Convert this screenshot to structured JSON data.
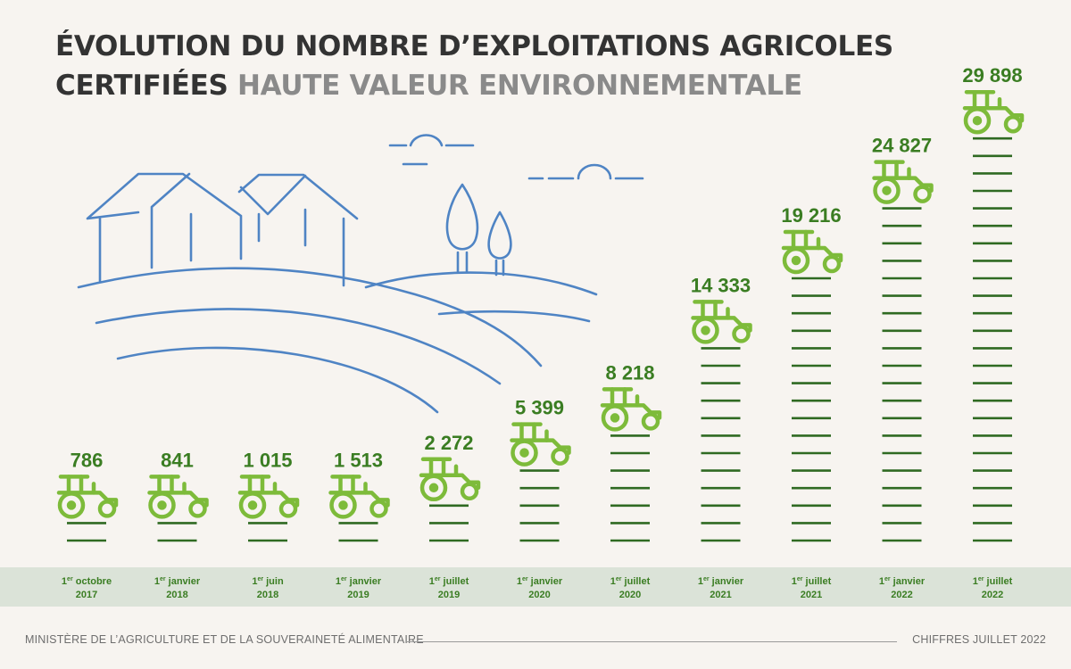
{
  "title": {
    "line1": "ÉVOLUTION DU NOMBRE D’EXPLOITATIONS AGRICOLES",
    "line2_dark": "CERTIFIÉES",
    "line2_accent": "HAUTE VALEUR ENVIRONNEMENTALE"
  },
  "footer": {
    "source": "MINISTÈRE DE L’AGRICULTURE ET DE LA SOUVERAINETÉ ALIMENTAIRE",
    "date": "CHIFFRES JUILLET 2022"
  },
  "colors": {
    "value_text": "#3a7d22",
    "tractor": "#7dbb3a",
    "bar_line": "#2f6a22",
    "axis_band": "#dbe3d8",
    "axis_text": "#3a7d22",
    "landscape": "#4f84c4"
  },
  "icons": [
    "tractor-icon"
  ],
  "chart_data": {
    "type": "bar",
    "x": [
      {
        "sup": "er",
        "day": "1",
        "month": "octobre",
        "year": "2017"
      },
      {
        "sup": "er",
        "day": "1",
        "month": "janvier",
        "year": "2018"
      },
      {
        "sup": "er",
        "day": "1",
        "month": "juin",
        "year": "2018"
      },
      {
        "sup": "er",
        "day": "1",
        "month": "janvier",
        "year": "2019"
      },
      {
        "sup": "er",
        "day": "1",
        "month": "juillet",
        "year": "2019"
      },
      {
        "sup": "er",
        "day": "1",
        "month": "janvier",
        "year": "2020"
      },
      {
        "sup": "er",
        "day": "1",
        "month": "juillet",
        "year": "2020"
      },
      {
        "sup": "er",
        "day": "1",
        "month": "janvier",
        "year": "2021"
      },
      {
        "sup": "er",
        "day": "1",
        "month": "juillet",
        "year": "2021"
      },
      {
        "sup": "er",
        "day": "1",
        "month": "janvier",
        "year": "2022"
      },
      {
        "sup": "er",
        "day": "1",
        "month": "juillet",
        "year": "2022"
      }
    ],
    "values": [
      786,
      841,
      1015,
      1513,
      2272,
      5399,
      8218,
      14333,
      19216,
      24827,
      29898
    ],
    "value_labels": [
      "786",
      "841",
      "1 015",
      "1 513",
      "2 272",
      "5 399",
      "8 218",
      "14 333",
      "19 216",
      "24 827",
      "29 898"
    ],
    "ylim": [
      0,
      29898
    ],
    "grid": false,
    "legend": "none"
  }
}
